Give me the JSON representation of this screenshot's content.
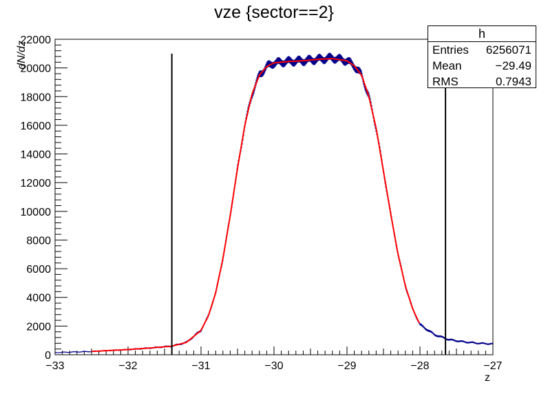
{
  "title": "vze {sector==2}",
  "stats_box": {
    "name": "h",
    "rows": [
      {
        "label": "Entries",
        "value": "6256071"
      },
      {
        "label": "Mean",
        "value": "−29.49"
      },
      {
        "label": "RMS",
        "value": "0.7943"
      }
    ]
  },
  "chart_data": {
    "type": "line",
    "title": "vze {sector==2}",
    "xlabel": "z",
    "ylabel": "dN/dz",
    "xlim": [
      -33,
      -27
    ],
    "ylim": [
      0,
      22000
    ],
    "x_ticks": [
      -33,
      -32,
      -31,
      -30,
      -29,
      -28,
      -27
    ],
    "x_tick_labels": [
      "−33",
      "−32",
      "−31",
      "−30",
      "−29",
      "−28",
      "−27"
    ],
    "y_ticks": [
      0,
      2000,
      4000,
      6000,
      8000,
      10000,
      12000,
      14000,
      16000,
      18000,
      20000,
      22000
    ],
    "y_tick_labels": [
      "0",
      "2000",
      "4000",
      "6000",
      "8000",
      "10000",
      "12000",
      "14000",
      "16000",
      "18000",
      "20000",
      "22000"
    ],
    "series": [
      {
        "kind": "histogram",
        "color": "#00008b",
        "x": [
          -33.0,
          -32.5,
          -32.0,
          -31.7,
          -31.4,
          -31.2,
          -31.0,
          -30.9,
          -30.8,
          -30.7,
          -30.6,
          -30.5,
          -30.4,
          -30.3,
          -30.2,
          -30.1,
          -30.0,
          -29.8,
          -29.6,
          -29.4,
          -29.2,
          -29.0,
          -28.9,
          -28.8,
          -28.7,
          -28.6,
          -28.5,
          -28.4,
          -28.3,
          -28.2,
          -28.1,
          -28.0,
          -27.8,
          -27.6,
          -27.4,
          -27.2,
          -27.0
        ],
        "y": [
          150,
          230,
          360,
          470,
          600,
          860,
          1700,
          2700,
          4300,
          6700,
          9700,
          13000,
          16000,
          18200,
          19500,
          20100,
          20350,
          20450,
          20500,
          20600,
          20700,
          20500,
          20150,
          19500,
          18000,
          15800,
          12800,
          9800,
          7000,
          4800,
          3200,
          2100,
          1400,
          1050,
          900,
          800,
          750
        ]
      },
      {
        "kind": "fit",
        "color": "#ff0000",
        "x": [
          -32.5,
          -32.0,
          -31.7,
          -31.4,
          -31.2,
          -31.0,
          -30.9,
          -30.8,
          -30.7,
          -30.6,
          -30.5,
          -30.4,
          -30.3,
          -30.2,
          -30.1,
          -30.0,
          -29.8,
          -29.6,
          -29.4,
          -29.2,
          -29.0,
          -28.9,
          -28.8,
          -28.7,
          -28.6,
          -28.5,
          -28.4,
          -28.3,
          -28.2,
          -28.1,
          -28.0
        ],
        "y": [
          230,
          360,
          470,
          600,
          860,
          1700,
          2700,
          4300,
          6700,
          9700,
          13000,
          16000,
          18200,
          19500,
          20100,
          20350,
          20450,
          20500,
          20600,
          20650,
          20500,
          20150,
          19500,
          18000,
          15800,
          12800,
          9800,
          7000,
          4800,
          3200,
          2100
        ]
      }
    ],
    "vertical_lines": [
      {
        "x": -31.4,
        "y_top": 21000,
        "color": "#000000"
      },
      {
        "x": -27.65,
        "y_top": 21000,
        "color": "#000000"
      }
    ],
    "grid": false,
    "legend": "top-right"
  }
}
